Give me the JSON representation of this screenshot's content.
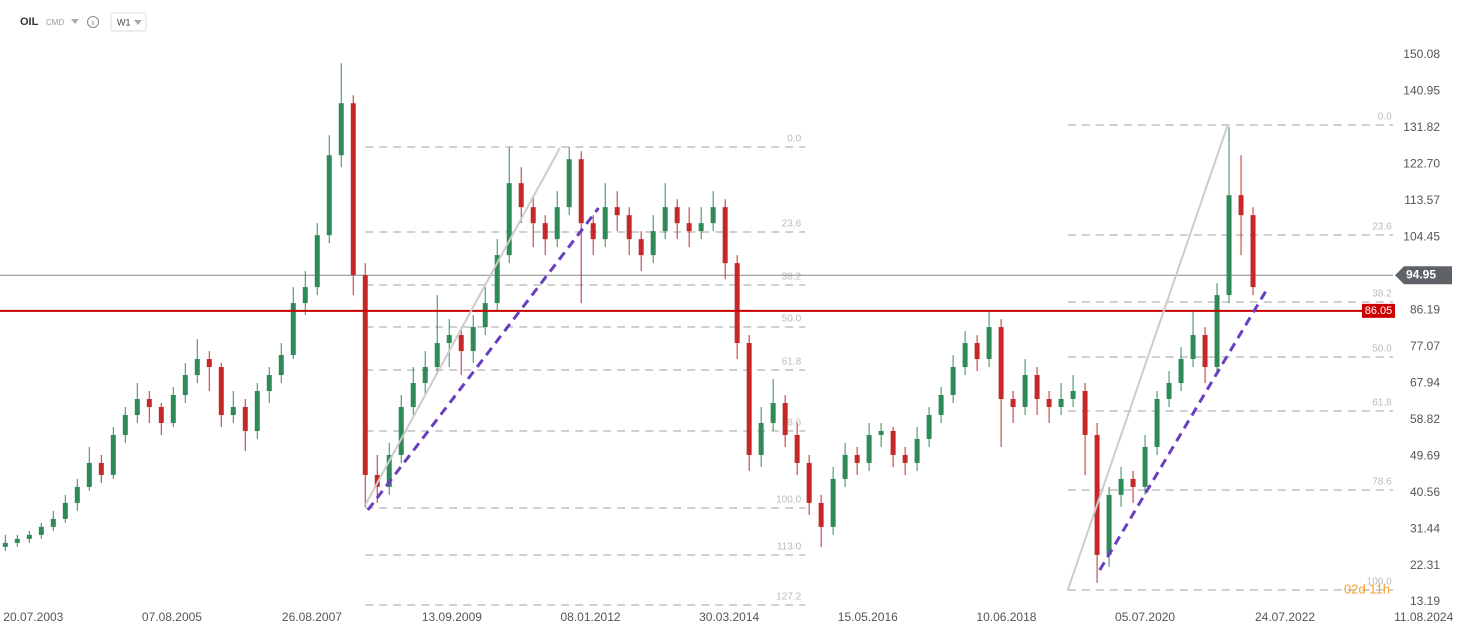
{
  "chart_data": {
    "type": "candlestick",
    "symbol": "OIL",
    "market": "CMD",
    "timeframe": "W1",
    "x": [
      -21,
      -12,
      -3,
      6,
      15,
      24,
      33,
      42,
      51,
      60,
      69,
      78,
      87,
      96,
      105,
      114,
      123,
      132,
      141,
      150,
      159,
      168,
      177,
      186,
      195,
      204,
      213,
      222,
      231,
      240,
      249,
      258,
      267,
      276,
      285,
      294,
      303,
      312,
      321,
      330,
      339,
      348,
      357,
      366,
      375,
      384,
      393,
      402,
      411,
      420,
      429,
      438,
      447,
      456,
      465,
      474,
      483,
      492,
      501,
      510,
      519,
      528,
      537,
      546,
      555,
      564,
      573,
      582,
      591,
      600,
      609,
      618,
      627,
      636,
      645,
      654,
      663,
      672,
      681,
      690,
      699,
      708,
      717,
      726,
      735,
      744,
      753,
      762,
      771,
      780,
      789,
      798,
      807,
      816,
      825,
      834,
      843,
      852,
      861,
      870,
      879,
      888,
      897,
      906,
      915
    ],
    "open": [
      27,
      28,
      29,
      30,
      32,
      34,
      38,
      42,
      48,
      45,
      55,
      60,
      64,
      62,
      58,
      65,
      70,
      74,
      72,
      60,
      62,
      56,
      66,
      70,
      75,
      88,
      92,
      105,
      125,
      138,
      95,
      45,
      42,
      50,
      62,
      68,
      72,
      78,
      80,
      76,
      82,
      88,
      100,
      118,
      112,
      108,
      104,
      112,
      124,
      108,
      104,
      112,
      110,
      104,
      100,
      106,
      112,
      108,
      106,
      108,
      112,
      98,
      78,
      50,
      58,
      63,
      55,
      48,
      38,
      32,
      44,
      50,
      48,
      55,
      56,
      50,
      48,
      54,
      60,
      65,
      72,
      78,
      74,
      82,
      64,
      62,
      70,
      64,
      62,
      64,
      66,
      55,
      25,
      40,
      44,
      42,
      52,
      64,
      68,
      74,
      80,
      72,
      90,
      115,
      110
    ],
    "high": [
      30,
      30,
      31,
      33,
      36,
      40,
      44,
      52,
      50,
      57,
      62,
      68,
      66,
      63,
      67,
      73,
      79,
      76,
      73,
      66,
      64,
      68,
      72,
      78,
      92,
      96,
      108,
      130,
      148,
      140,
      98,
      50,
      53,
      65,
      72,
      76,
      90,
      84,
      82,
      85,
      92,
      104,
      127,
      122,
      115,
      110,
      116,
      127,
      126,
      110,
      118,
      116,
      112,
      106,
      110,
      118,
      114,
      112,
      112,
      116,
      114,
      100,
      80,
      62,
      69,
      65,
      58,
      50,
      40,
      47,
      53,
      52,
      58,
      58,
      57,
      52,
      57,
      62,
      67,
      75,
      81,
      80,
      86,
      84,
      66,
      74,
      72,
      66,
      68,
      70,
      68,
      58,
      42,
      47,
      46,
      55,
      66,
      71,
      77,
      86,
      82,
      93,
      132,
      125,
      112
    ],
    "low": [
      26,
      27,
      28,
      29,
      31,
      33,
      36,
      41,
      43,
      44,
      53,
      58,
      58,
      55,
      57,
      63,
      68,
      66,
      57,
      58,
      51,
      54,
      63,
      68,
      74,
      85,
      90,
      103,
      122,
      90,
      37,
      38,
      40,
      48,
      60,
      65,
      70,
      72,
      70,
      73,
      80,
      86,
      98,
      108,
      102,
      100,
      102,
      110,
      88,
      100,
      102,
      106,
      100,
      96,
      98,
      104,
      104,
      102,
      104,
      106,
      94,
      74,
      46,
      47,
      56,
      52,
      45,
      35,
      27,
      30,
      42,
      45,
      46,
      52,
      47,
      45,
      46,
      52,
      58,
      63,
      70,
      71,
      72,
      52,
      58,
      60,
      60,
      58,
      60,
      62,
      45,
      18,
      22,
      37,
      38,
      40,
      50,
      62,
      66,
      72,
      68,
      70,
      88,
      100,
      90
    ],
    "close": [
      28,
      29,
      30,
      32,
      34,
      38,
      42,
      48,
      45,
      55,
      60,
      64,
      62,
      58,
      65,
      70,
      74,
      72,
      60,
      62,
      56,
      66,
      70,
      75,
      88,
      92,
      105,
      125,
      138,
      95,
      45,
      42,
      50,
      62,
      68,
      72,
      78,
      80,
      76,
      82,
      88,
      100,
      118,
      112,
      108,
      104,
      112,
      124,
      108,
      104,
      112,
      110,
      104,
      100,
      106,
      112,
      108,
      106,
      108,
      112,
      98,
      78,
      50,
      58,
      63,
      55,
      48,
      38,
      32,
      44,
      50,
      48,
      55,
      56,
      50,
      48,
      54,
      60,
      65,
      72,
      78,
      74,
      82,
      64,
      62,
      70,
      64,
      62,
      64,
      66,
      55,
      25,
      40,
      44,
      42,
      52,
      64,
      68,
      74,
      80,
      72,
      90,
      115,
      110,
      92
    ],
    "up_color": "#2e8b57",
    "down_color": "#c62828",
    "xlim": [
      -25,
      1044
    ],
    "ylim": [
      10,
      152
    ],
    "xticks": [
      {
        "value": 0,
        "label": "20.07.2003"
      },
      {
        "value": 104,
        "label": "07.08.2005"
      },
      {
        "value": 209,
        "label": "26.08.2007"
      },
      {
        "value": 314,
        "label": "13.09.2009"
      },
      {
        "value": 418,
        "label": "08.01.2012"
      },
      {
        "value": 522,
        "label": "30.03.2014"
      },
      {
        "value": 626,
        "label": "15.05.2016"
      },
      {
        "value": 730,
        "label": "10.06.2018"
      },
      {
        "value": 834,
        "label": "05.07.2020"
      },
      {
        "value": 939,
        "label": "24.07.2022"
      },
      {
        "value": 1043,
        "label": "11.08.2024"
      }
    ],
    "yticks": [
      150.08,
      140.95,
      131.82,
      {
        "value": 122.7,
        "label": "122.70"
      },
      113.57,
      104.45,
      86.19,
      77.07,
      67.94,
      58.82,
      49.69,
      40.56,
      31.44,
      22.31,
      13.19
    ],
    "last_price": {
      "value": 94.95,
      "color": "#5f6368"
    },
    "level_line": {
      "value": 86.05,
      "color": "#cc0000"
    },
    "fibs": [
      {
        "x_range": [
          249,
          579
        ],
        "levels": [
          {
            "label": "0.0",
            "price": 127.06
          },
          {
            "label": "23.6",
            "price": 105.79
          },
          {
            "label": "38.2",
            "price": 92.52
          },
          {
            "label": "50.0",
            "price": 82.01
          },
          {
            "label": "61.8",
            "price": 71.25
          },
          {
            "label": "78.6",
            "price": 55.99
          },
          {
            "label": "100.0",
            "price": 36.72
          },
          {
            "label": "113.0",
            "price": 24.96
          },
          {
            "label": "127.2",
            "price": 12.45
          }
        ]
      },
      {
        "x_range": [
          776,
          1022
        ],
        "levels": [
          {
            "label": "0.0",
            "price": 132.56
          },
          {
            "label": "23.6",
            "price": 105.04
          },
          {
            "label": "38.2",
            "price": 88.27
          },
          {
            "label": "50.0",
            "price": 74.5
          },
          {
            "label": "61.8",
            "price": 61.0
          },
          {
            "label": "78.6",
            "price": 41.22
          },
          {
            "label": "100.0",
            "price": 16.19
          }
        ]
      }
    ],
    "trendlines": [
      {
        "color": "#cccccc",
        "dashed": false,
        "points": [
          [
            249,
            37.47
          ],
          [
            395,
            126.81
          ]
        ]
      },
      {
        "color": "#cccccc",
        "dashed": false,
        "points": [
          [
            776,
            16.19
          ],
          [
            896,
            132.56
          ]
        ]
      },
      {
        "color": "#6a3fbf",
        "dashed": true,
        "points": [
          [
            251,
            36.22
          ],
          [
            424,
            111.79
          ]
        ]
      },
      {
        "color": "#6a3fbf",
        "dashed": true,
        "points": [
          [
            800,
            21.19
          ],
          [
            926,
            91.77
          ]
        ]
      }
    ],
    "countdown": "02d 11h"
  }
}
